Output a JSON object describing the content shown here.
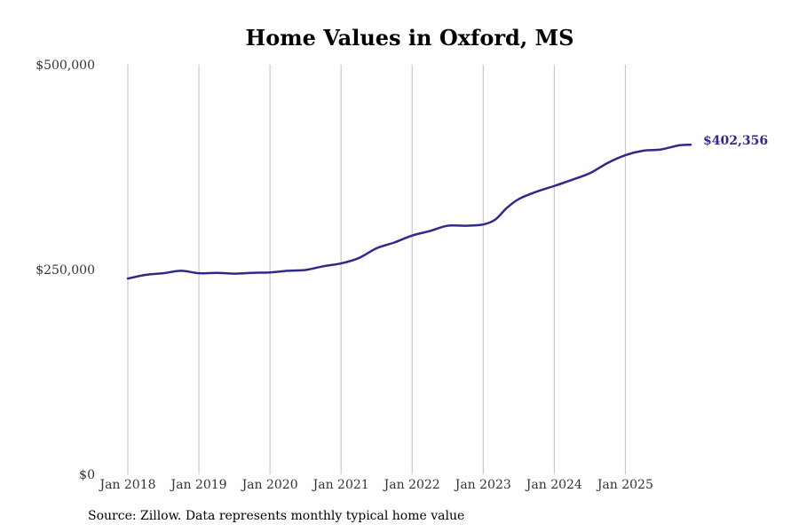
{
  "chart_data": {
    "type": "line",
    "title": "Home Values in Oxford, MS",
    "xlabel": "",
    "ylabel": "",
    "ylim": [
      0,
      500000
    ],
    "y_ticks": [
      {
        "value": 0,
        "label": "$0"
      },
      {
        "value": 250000,
        "label": "$250,000"
      },
      {
        "value": 500000,
        "label": "$500,000"
      }
    ],
    "x_ticks": [
      {
        "value": 2018,
        "label": "Jan 2018"
      },
      {
        "value": 2019,
        "label": "Jan 2019"
      },
      {
        "value": 2020,
        "label": "Jan 2020"
      },
      {
        "value": 2021,
        "label": "Jan 2021"
      },
      {
        "value": 2022,
        "label": "Jan 2022"
      },
      {
        "value": 2023,
        "label": "Jan 2023"
      },
      {
        "value": 2024,
        "label": "Jan 2024"
      },
      {
        "value": 2025,
        "label": "Jan 2025"
      }
    ],
    "xlim": [
      2018,
      2025.92
    ],
    "grid": "vertical",
    "series": [
      {
        "name": "Typical home value",
        "color": "#2e2a8c",
        "points": [
          [
            2018.0,
            239000
          ],
          [
            2018.25,
            243500
          ],
          [
            2018.5,
            245500
          ],
          [
            2018.75,
            248500
          ],
          [
            2019.0,
            245500
          ],
          [
            2019.25,
            246000
          ],
          [
            2019.5,
            245000
          ],
          [
            2019.75,
            246000
          ],
          [
            2020.0,
            246500
          ],
          [
            2020.25,
            248500
          ],
          [
            2020.5,
            249500
          ],
          [
            2020.75,
            254000
          ],
          [
            2021.0,
            257500
          ],
          [
            2021.25,
            264000
          ],
          [
            2021.5,
            276000
          ],
          [
            2021.75,
            283000
          ],
          [
            2022.0,
            291500
          ],
          [
            2022.25,
            297000
          ],
          [
            2022.5,
            303500
          ],
          [
            2022.75,
            303500
          ],
          [
            2023.0,
            305000
          ],
          [
            2023.17,
            311000
          ],
          [
            2023.33,
            325000
          ],
          [
            2023.5,
            336000
          ],
          [
            2023.75,
            345000
          ],
          [
            2024.0,
            352000
          ],
          [
            2024.25,
            359500
          ],
          [
            2024.5,
            367500
          ],
          [
            2024.75,
            380000
          ],
          [
            2025.0,
            389500
          ],
          [
            2025.25,
            395000
          ],
          [
            2025.5,
            396500
          ],
          [
            2025.75,
            401500
          ],
          [
            2025.92,
            402356
          ]
        ]
      }
    ],
    "end_label": "$402,356"
  },
  "footer": {
    "source": "Source: Zillow. Data represents monthly typical home value"
  }
}
